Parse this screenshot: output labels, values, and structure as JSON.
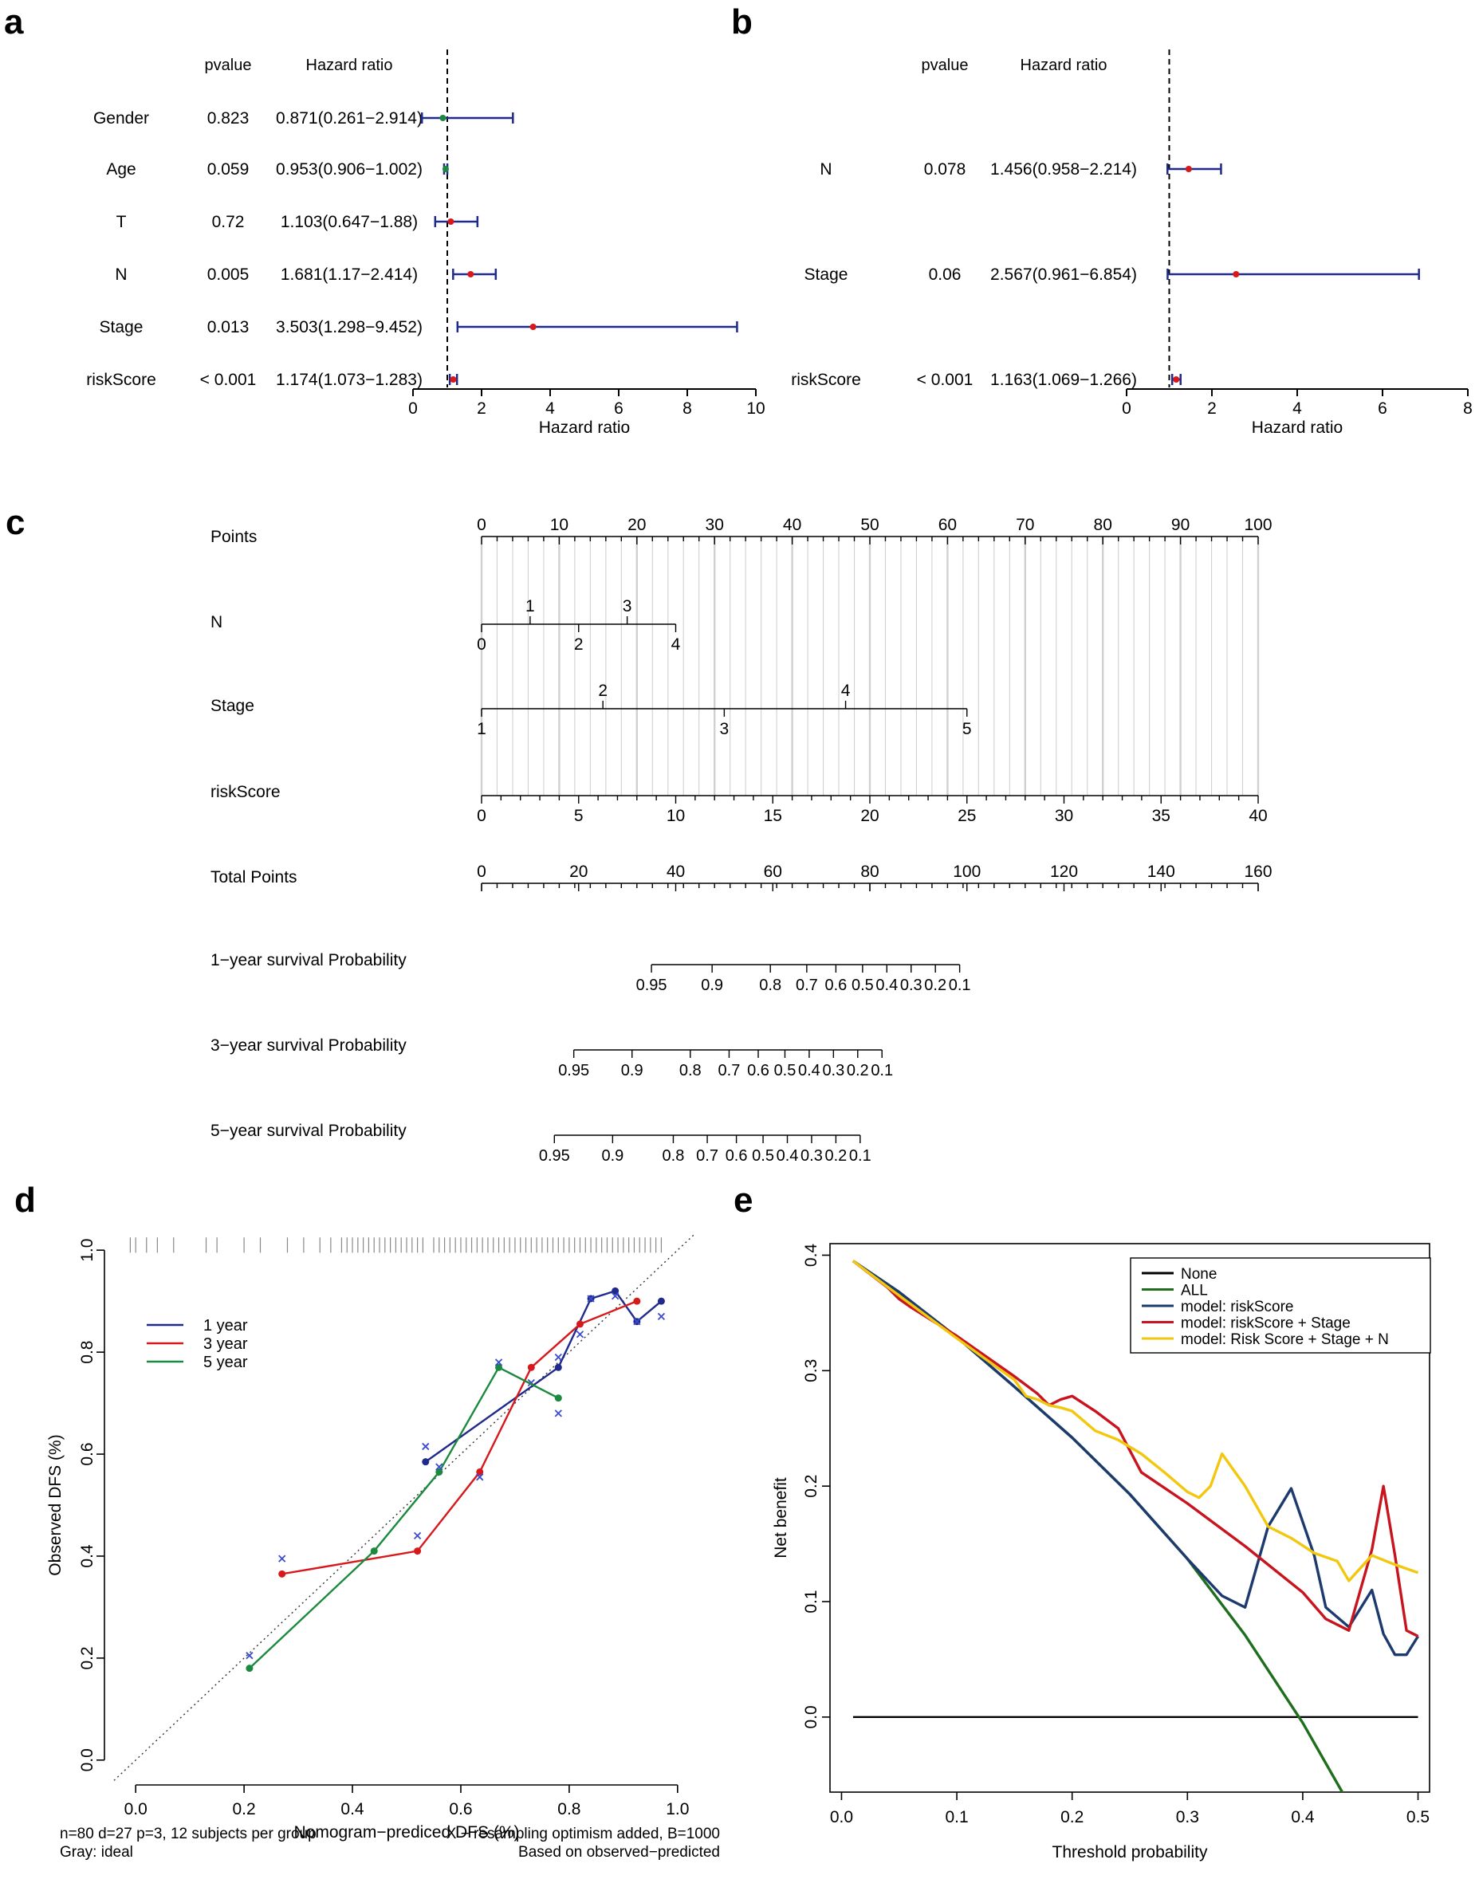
{
  "colors": {
    "blue": "#1f2a8c",
    "red": "#d7191c",
    "green": "#1b8a3e",
    "yellow": "#f2c80f",
    "black": "#000000",
    "grid": "#d0d0d0",
    "dgreen": "#1e6e1e",
    "navy": "#1d3a6e",
    "dred": "#c8141e"
  },
  "chart_data": [
    {
      "id": "a",
      "panel_label": "a",
      "type": "forest",
      "header_pvalue": "pvalue",
      "header_hr": "Hazard ratio",
      "xlabel": "Hazard ratio",
      "xlim": [
        0,
        10
      ],
      "xticks": [
        0,
        2,
        4,
        6,
        8,
        10
      ],
      "ref_line": 1,
      "rows": [
        {
          "label": "Gender",
          "pvalue": "0.823",
          "hr_text": "0.871(0.261−2.914)",
          "hr": 0.871,
          "lo": 0.261,
          "hi": 2.914,
          "dot": "green"
        },
        {
          "label": "Age",
          "pvalue": "0.059",
          "hr_text": "0.953(0.906−1.002)",
          "hr": 0.953,
          "lo": 0.906,
          "hi": 1.002,
          "dot": "green"
        },
        {
          "label": "T",
          "pvalue": "0.72",
          "hr_text": "1.103(0.647−1.88)",
          "hr": 1.103,
          "lo": 0.647,
          "hi": 1.88,
          "dot": "red"
        },
        {
          "label": "N",
          "pvalue": "0.005",
          "hr_text": "1.681(1.17−2.414)",
          "hr": 1.681,
          "lo": 1.17,
          "hi": 2.414,
          "dot": "red"
        },
        {
          "label": "Stage",
          "pvalue": "0.013",
          "hr_text": "3.503(1.298−9.452)",
          "hr": 3.503,
          "lo": 1.298,
          "hi": 9.452,
          "dot": "red"
        },
        {
          "label": "riskScore",
          "pvalue": "< 0.001",
          "hr_text": "1.174(1.073−1.283)",
          "hr": 1.174,
          "lo": 1.073,
          "hi": 1.283,
          "dot": "red"
        }
      ]
    },
    {
      "id": "b",
      "panel_label": "b",
      "type": "forest",
      "header_pvalue": "pvalue",
      "header_hr": "Hazard ratio",
      "xlabel": "Hazard ratio",
      "xlim": [
        0,
        8
      ],
      "xticks": [
        0,
        2,
        4,
        6,
        8
      ],
      "ref_line": 1,
      "rows": [
        {
          "label": "N",
          "pvalue": "0.078",
          "hr_text": "1.456(0.958−2.214)",
          "hr": 1.456,
          "lo": 0.958,
          "hi": 2.214,
          "dot": "red"
        },
        {
          "label": "Stage",
          "pvalue": "0.06",
          "hr_text": "2.567(0.961−6.854)",
          "hr": 2.567,
          "lo": 0.961,
          "hi": 6.854,
          "dot": "red"
        },
        {
          "label": "riskScore",
          "pvalue": "< 0.001",
          "hr_text": "1.163(1.069−1.266)",
          "hr": 1.163,
          "lo": 1.069,
          "hi": 1.266,
          "dot": "red"
        }
      ]
    },
    {
      "id": "c",
      "panel_label": "c",
      "type": "nomogram",
      "rows": [
        {
          "label": "Points",
          "kind": "points",
          "min": 0,
          "max": 100,
          "ticks": [
            0,
            10,
            20,
            30,
            40,
            50,
            60,
            70,
            80,
            90,
            100
          ]
        },
        {
          "label": "N",
          "kind": "var",
          "vmin": 0,
          "vmax": 4,
          "pmin": 0,
          "pmax": 25,
          "above": [
            "1",
            "3"
          ],
          "below": [
            "0",
            "2",
            "4"
          ]
        },
        {
          "label": "Stage",
          "kind": "var",
          "vmin": 1,
          "vmax": 5,
          "pmin": 0,
          "pmax": 62.5,
          "above": [
            "2",
            "4"
          ],
          "below": [
            "1",
            "3",
            "5"
          ]
        },
        {
          "label": "riskScore",
          "kind": "linear",
          "vmin": 0,
          "vmax": 40,
          "pmin": 0,
          "pmax": 100,
          "ticks": [
            0,
            5,
            10,
            15,
            20,
            25,
            30,
            35,
            40
          ]
        },
        {
          "label": "Total Points",
          "kind": "total",
          "min": 0,
          "max": 160,
          "ticks": [
            0,
            20,
            40,
            60,
            80,
            100,
            120,
            140,
            160
          ]
        },
        {
          "label": "1−year survival Probability",
          "kind": "prob",
          "probs": [
            "0.95",
            "0.9",
            "0.8",
            "0.7",
            "0.6",
            "0.5",
            "0.4",
            "0.3",
            "0.2",
            "0.1"
          ],
          "total_points": [
            35,
            47.5,
            59.5,
            67,
            73,
            78.5,
            83.5,
            88.5,
            93.5,
            98.5
          ]
        },
        {
          "label": "3−year survival Probability",
          "kind": "prob",
          "probs": [
            "0.95",
            "0.9",
            "0.8",
            "0.7",
            "0.6",
            "0.5",
            "0.4",
            "0.3",
            "0.2",
            "0.1"
          ],
          "total_points": [
            19,
            31,
            43,
            51,
            57,
            62.5,
            67.5,
            72.5,
            77.5,
            82.5
          ]
        },
        {
          "label": "5−year survival Probability",
          "kind": "prob",
          "probs": [
            "0.95",
            "0.9",
            "0.8",
            "0.7",
            "0.6",
            "0.5",
            "0.4",
            "0.3",
            "0.2",
            "0.1"
          ],
          "total_points": [
            15,
            27,
            39.5,
            46.5,
            52.5,
            58,
            63,
            68,
            73,
            78
          ]
        }
      ]
    },
    {
      "id": "d",
      "panel_label": "d",
      "type": "calibration",
      "xlabel": "Nomogram−prediced DFS (%)",
      "ylabel": "Observed DFS (%)",
      "xlim": [
        -0.04,
        1.04
      ],
      "ylim": [
        -0.03,
        1.03
      ],
      "xticks": [
        0.0,
        0.2,
        0.4,
        0.6,
        0.8,
        1.0
      ],
      "yticks": [
        0.0,
        0.2,
        0.4,
        0.6,
        0.8,
        1.0
      ],
      "tick_labels": [
        "0.0",
        "0.2",
        "0.4",
        "0.6",
        "0.8",
        "1.0"
      ],
      "legend": [
        "1 year",
        "3 year",
        "5 year"
      ],
      "note_left": [
        "n=80 d=27 p=3, 12 subjects per group",
        "Gray: ideal"
      ],
      "note_right": [
        "X − resampling optimism added, B=1000",
        "Based on observed−predicted"
      ],
      "rug": [
        -0.01,
        0.0,
        0.02,
        0.04,
        0.07,
        0.13,
        0.15,
        0.2,
        0.23,
        0.28,
        0.31,
        0.34,
        0.36,
        0.38,
        0.39,
        0.4,
        0.41,
        0.42,
        0.43,
        0.44,
        0.45,
        0.46,
        0.47,
        0.48,
        0.49,
        0.5,
        0.51,
        0.52,
        0.53,
        0.55,
        0.56,
        0.57,
        0.58,
        0.59,
        0.6,
        0.61,
        0.62,
        0.63,
        0.64,
        0.65,
        0.66,
        0.67,
        0.68,
        0.69,
        0.7,
        0.71,
        0.72,
        0.73,
        0.74,
        0.75,
        0.76,
        0.77,
        0.78,
        0.79,
        0.8,
        0.81,
        0.82,
        0.83,
        0.84,
        0.85,
        0.86,
        0.87,
        0.88,
        0.89,
        0.9,
        0.91,
        0.92,
        0.93,
        0.94,
        0.95,
        0.96,
        0.97
      ],
      "series": [
        {
          "name": "1 year",
          "color": "blue",
          "x": [
            0.535,
            0.78,
            0.84,
            0.885,
            0.925,
            0.97
          ],
          "y": [
            0.585,
            0.77,
            0.905,
            0.92,
            0.86,
            0.9
          ],
          "xcross": [
            0.535,
            0.78,
            0.84,
            0.885,
            0.925,
            0.97
          ],
          "ycross": [
            0.615,
            0.68,
            0.905,
            0.91,
            0.86,
            0.87
          ]
        },
        {
          "name": "3 year",
          "color": "red",
          "x": [
            0.27,
            0.52,
            0.635,
            0.73,
            0.82,
            0.925
          ],
          "y": [
            0.365,
            0.41,
            0.565,
            0.77,
            0.855,
            0.9
          ],
          "xcross": [
            0.27,
            0.52,
            0.635,
            0.73,
            0.82
          ],
          "ycross": [
            0.395,
            0.44,
            0.555,
            0.74,
            0.835
          ]
        },
        {
          "name": "5 year",
          "color": "green",
          "x": [
            0.21,
            0.44,
            0.56,
            0.67,
            0.78
          ],
          "y": [
            0.18,
            0.41,
            0.565,
            0.77,
            0.71
          ],
          "xcross": [
            0.21,
            0.56,
            0.67,
            0.78
          ],
          "ycross": [
            0.205,
            0.575,
            0.78,
            0.79
          ]
        }
      ]
    },
    {
      "id": "e",
      "panel_label": "e",
      "type": "line",
      "xlabel": "Threshold probability",
      "ylabel": "Net benefit",
      "xlim": [
        -0.01,
        0.51
      ],
      "ylim": [
        -0.065,
        0.41
      ],
      "xticks": [
        0.0,
        0.1,
        0.2,
        0.3,
        0.4,
        0.5
      ],
      "xtick_labels": [
        "0.0",
        "0.1",
        "0.2",
        "0.3",
        "0.4",
        "0.5"
      ],
      "yticks": [
        0.0,
        0.1,
        0.2,
        0.3,
        0.4
      ],
      "ytick_labels": [
        "0.0",
        "0.1",
        "0.2",
        "0.3",
        "0.4"
      ],
      "legend": [
        "None",
        "ALL",
        "model: riskScore",
        "model: riskScore + Stage",
        "model: Risk Score + Stage + N"
      ],
      "series": [
        {
          "name": "None",
          "color": "black",
          "x": [
            0.01,
            0.5
          ],
          "y": [
            0,
            0
          ]
        },
        {
          "name": "ALL",
          "color": "dgreen",
          "x": [
            0.01,
            0.05,
            0.1,
            0.15,
            0.2,
            0.25,
            0.3,
            0.35,
            0.4,
            0.44
          ],
          "y": [
            0.395,
            0.368,
            0.329,
            0.286,
            0.242,
            0.193,
            0.137,
            0.071,
            -0.005,
            -0.075
          ]
        },
        {
          "name": "model: riskScore",
          "color": "navy",
          "x": [
            0.01,
            0.05,
            0.1,
            0.15,
            0.2,
            0.25,
            0.3,
            0.33,
            0.35,
            0.37,
            0.39,
            0.41,
            0.42,
            0.44,
            0.46,
            0.47,
            0.48,
            0.49,
            0.5
          ],
          "y": [
            0.395,
            0.368,
            0.329,
            0.286,
            0.242,
            0.193,
            0.137,
            0.105,
            0.095,
            0.165,
            0.198,
            0.14,
            0.095,
            0.078,
            0.11,
            0.072,
            0.054,
            0.054,
            0.07
          ]
        },
        {
          "name": "model: riskScore + Stage",
          "color": "dred",
          "x": [
            0.01,
            0.04,
            0.05,
            0.06,
            0.1,
            0.15,
            0.17,
            0.18,
            0.19,
            0.2,
            0.22,
            0.24,
            0.26,
            0.3,
            0.35,
            0.4,
            0.42,
            0.44,
            0.46,
            0.47,
            0.48,
            0.49,
            0.5
          ],
          "y": [
            0.395,
            0.372,
            0.362,
            0.355,
            0.33,
            0.295,
            0.28,
            0.27,
            0.275,
            0.278,
            0.265,
            0.25,
            0.212,
            0.185,
            0.148,
            0.108,
            0.085,
            0.075,
            0.145,
            0.2,
            0.14,
            0.075,
            0.07
          ]
        },
        {
          "name": "model: Risk Score + Stage + N",
          "color": "yellow",
          "x": [
            0.01,
            0.05,
            0.1,
            0.15,
            0.16,
            0.17,
            0.18,
            0.19,
            0.2,
            0.22,
            0.24,
            0.26,
            0.28,
            0.3,
            0.31,
            0.32,
            0.33,
            0.35,
            0.37,
            0.39,
            0.41,
            0.43,
            0.44,
            0.46,
            0.48,
            0.5
          ],
          "y": [
            0.395,
            0.365,
            0.328,
            0.292,
            0.278,
            0.275,
            0.27,
            0.268,
            0.265,
            0.248,
            0.24,
            0.228,
            0.212,
            0.195,
            0.19,
            0.2,
            0.228,
            0.2,
            0.165,
            0.155,
            0.142,
            0.135,
            0.118,
            0.14,
            0.132,
            0.125
          ]
        }
      ]
    }
  ]
}
